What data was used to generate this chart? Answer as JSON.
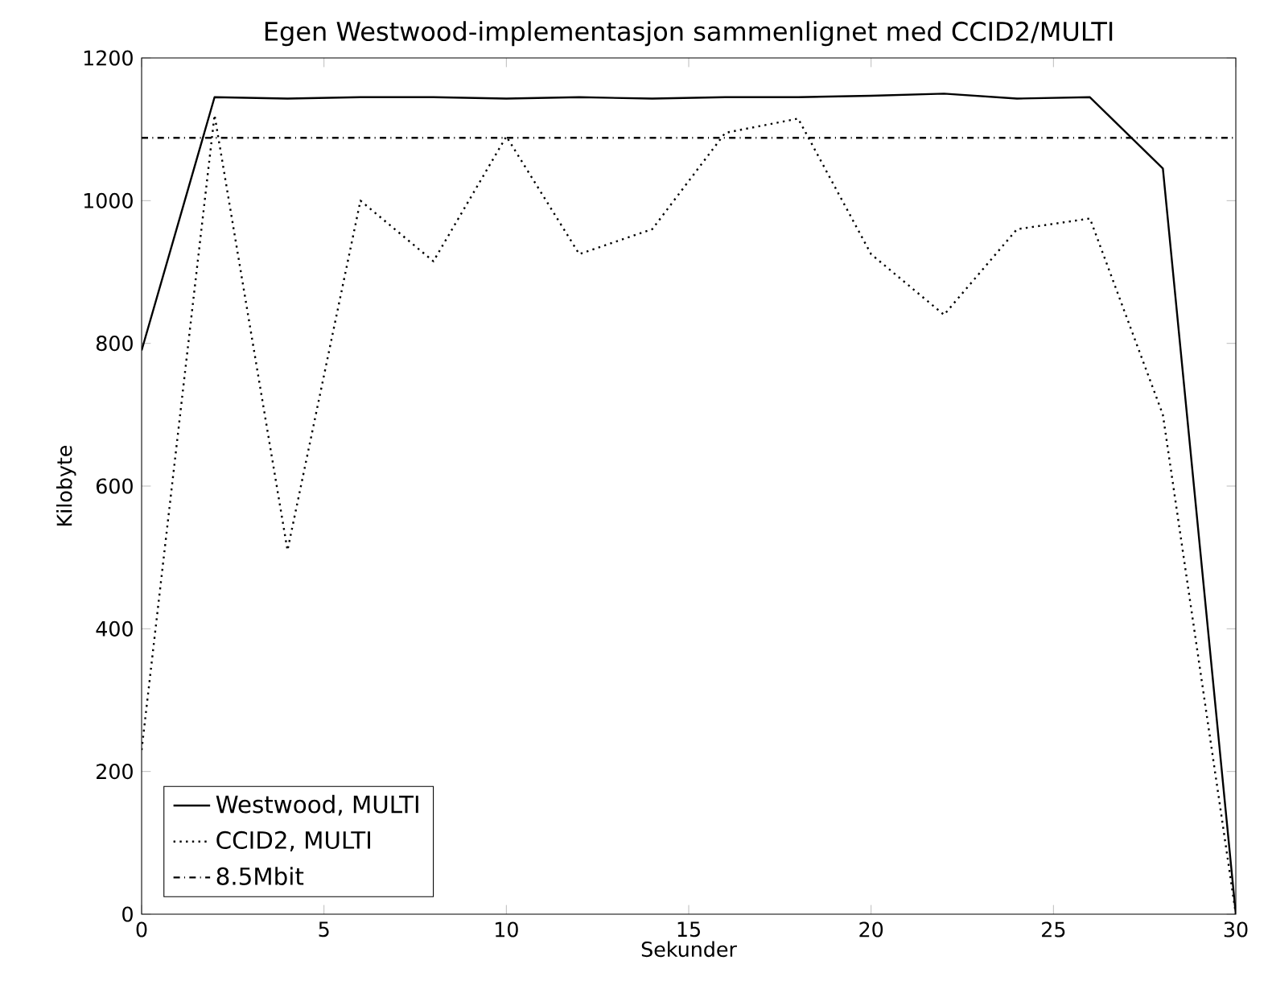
{
  "chart_data": {
    "type": "line",
    "title": "Egen Westwood-implementasjon sammenlignet med CCID2/MULTI",
    "xlabel": "Sekunder",
    "ylabel": "Kilobyte",
    "x": [
      0,
      2,
      4,
      6,
      8,
      10,
      12,
      14,
      16,
      18,
      20,
      22,
      24,
      26,
      28,
      30
    ],
    "series": [
      {
        "name": "Westwood, MULTI",
        "color": "#000000",
        "line_style": "solid",
        "values": [
          790,
          1145,
          1143,
          1145,
          1145,
          1143,
          1145,
          1143,
          1145,
          1145,
          1147,
          1150,
          1143,
          1145,
          1045,
          0
        ]
      },
      {
        "name": "CCID2, MULTI",
        "color": "#000000",
        "line_style": "dotted",
        "values": [
          230,
          1120,
          510,
          1000,
          915,
          1090,
          925,
          960,
          1095,
          1115,
          925,
          840,
          960,
          975,
          700,
          0
        ]
      },
      {
        "name": "8.5Mbit",
        "color": "#000000",
        "line_style": "dashdot",
        "x": [
          0,
          30
        ],
        "values": [
          1088,
          1088
        ]
      }
    ],
    "xlim": [
      0,
      30
    ],
    "ylim": [
      0,
      1200
    ],
    "xticks": [
      0,
      5,
      10,
      15,
      20,
      25,
      30
    ],
    "yticks": [
      0,
      200,
      400,
      600,
      800,
      1000,
      1200
    ],
    "grid": false,
    "legend": "bottom left",
    "marker": "none"
  }
}
